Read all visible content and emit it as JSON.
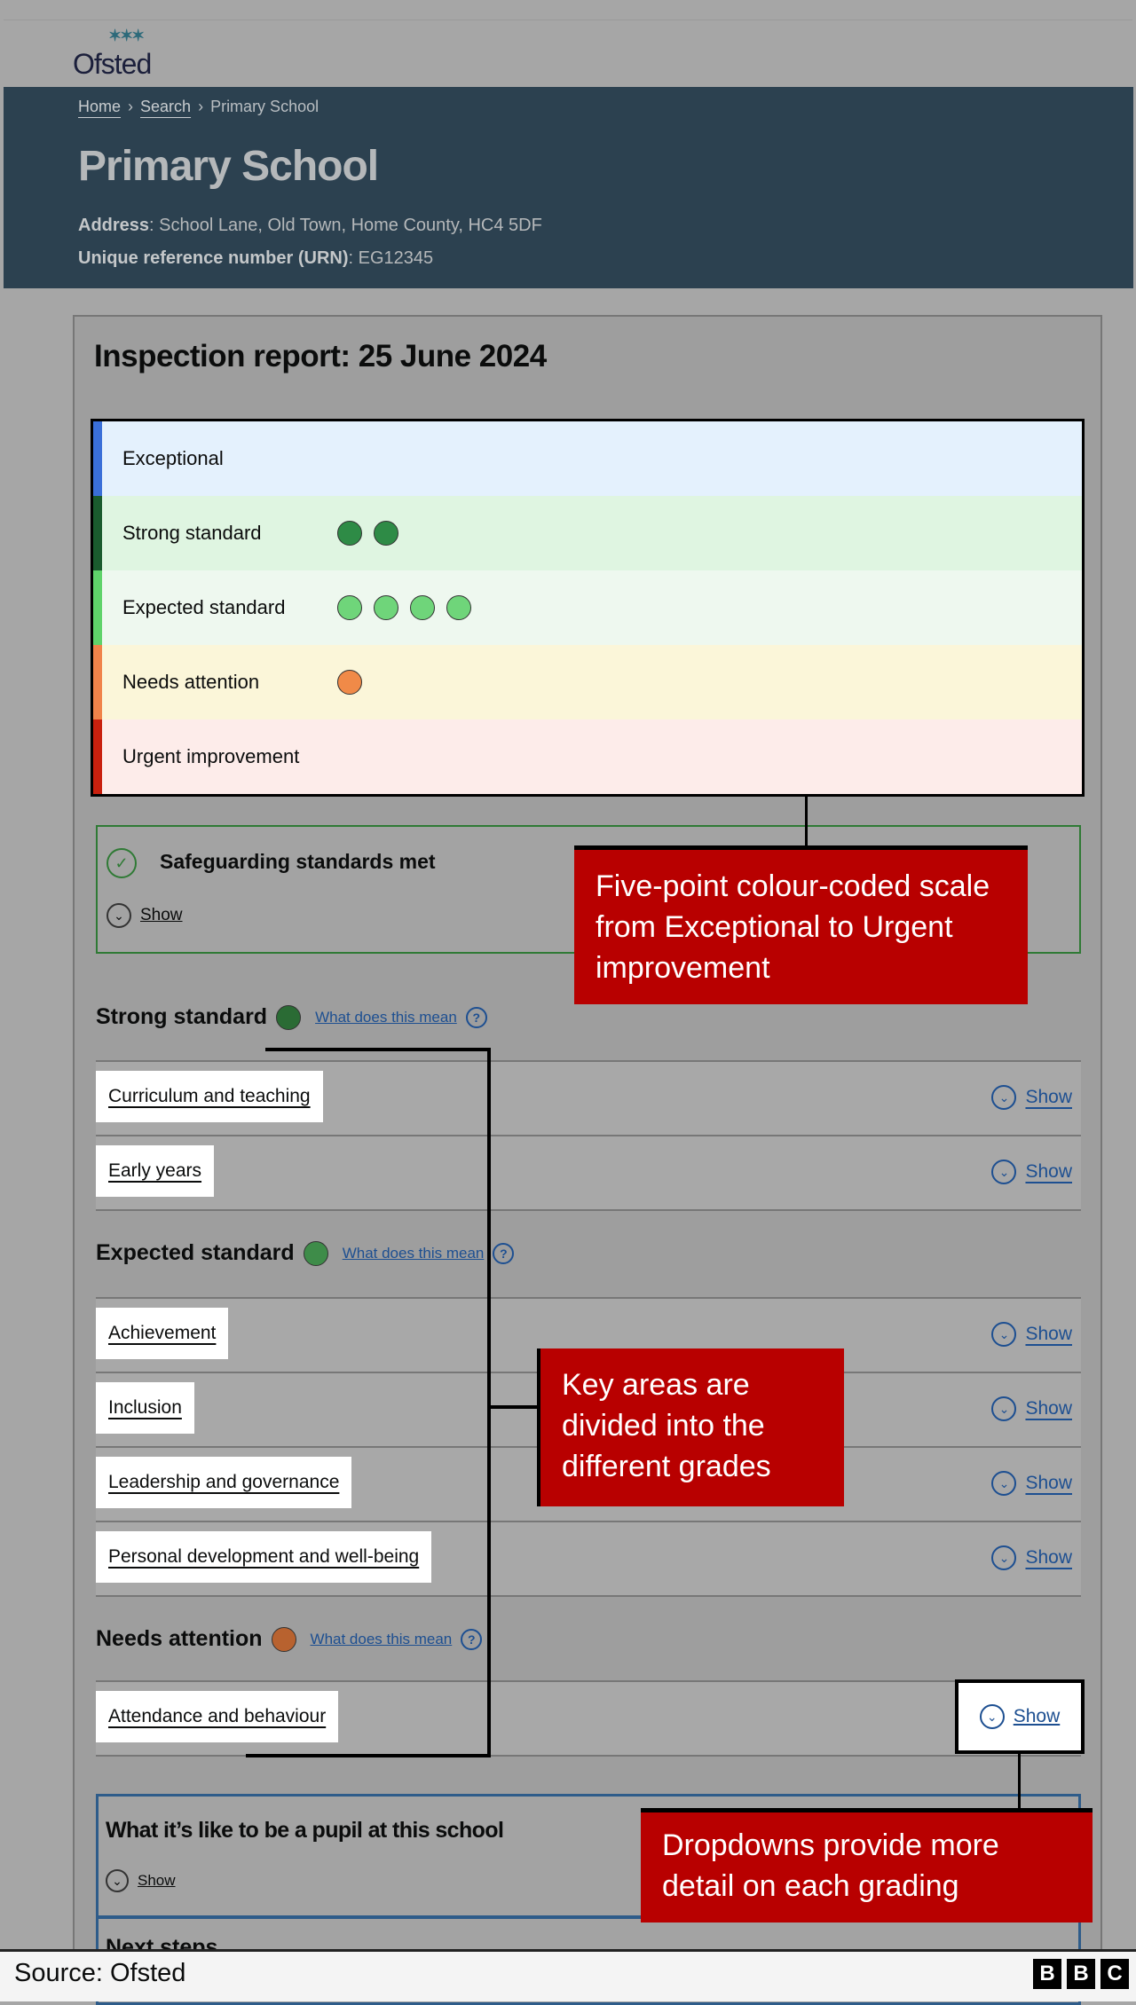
{
  "header": {
    "logo_text": "Ofsted"
  },
  "breadcrumb": [
    "Home",
    "Search",
    "Primary School"
  ],
  "school": {
    "name": "Primary School",
    "address_label": "Address",
    "address": ": School Lane, Old Town, Home County, HC4 5DF",
    "urn_label": "Unique reference number (URN)",
    "urn": ": EG12345"
  },
  "report": {
    "title": "Inspection report: 25 June 2024",
    "scale": [
      {
        "label": "Exceptional",
        "count": 0,
        "bar": "#3a6fd8",
        "bg": "#e4f1fd",
        "dot": "#3a6fd8"
      },
      {
        "label": "Strong standard",
        "count": 2,
        "bar": "#1a5b2e",
        "bg": "#dff5e1",
        "dot": "#2e8b46"
      },
      {
        "label": "Expected standard",
        "count": 4,
        "bar": "#5fd36a",
        "bg": "#eef8ef",
        "dot": "#6fd57a"
      },
      {
        "label": "Needs attention",
        "count": 1,
        "bar": "#f0834a",
        "bg": "#fbf6d9",
        "dot": "#f08a48"
      },
      {
        "label": "Urgent improvement",
        "count": 0,
        "bar": "#c8200e",
        "bg": "#fdecea",
        "dot": "#c8200e"
      }
    ],
    "safeguarding": {
      "title": "Safeguarding standards met",
      "show": "Show"
    },
    "sections": [
      {
        "heading": "Strong standard",
        "dot": "#2a6b34",
        "help": "What does this mean",
        "items": [
          "Curriculum and teaching",
          "Early years"
        ]
      },
      {
        "heading": "Expected standard",
        "dot": "#3e8c49",
        "help": "What does this mean",
        "items": [
          "Achievement",
          "Inclusion",
          "Leadership and governance",
          "Personal development and well-being"
        ]
      },
      {
        "heading": "Needs attention",
        "dot": "#b8622f",
        "help": "What does this mean",
        "items": [
          "Attendance and behaviour"
        ]
      }
    ],
    "show_label": "Show",
    "pupil_box": {
      "title": "What it’s like to be a pupil at this school",
      "show": "Show"
    },
    "next_steps": {
      "title": "Next steps"
    }
  },
  "annotations": {
    "scale_note": "Five-point colour-coded scale from Exceptional to Urgent improvement",
    "areas_note": "Key areas are divided into the different grades",
    "dropdown_note": "Dropdowns provide more detail on each grading"
  },
  "footer": {
    "source": "Source: Ofsted",
    "brand": [
      "B",
      "B",
      "C"
    ]
  }
}
